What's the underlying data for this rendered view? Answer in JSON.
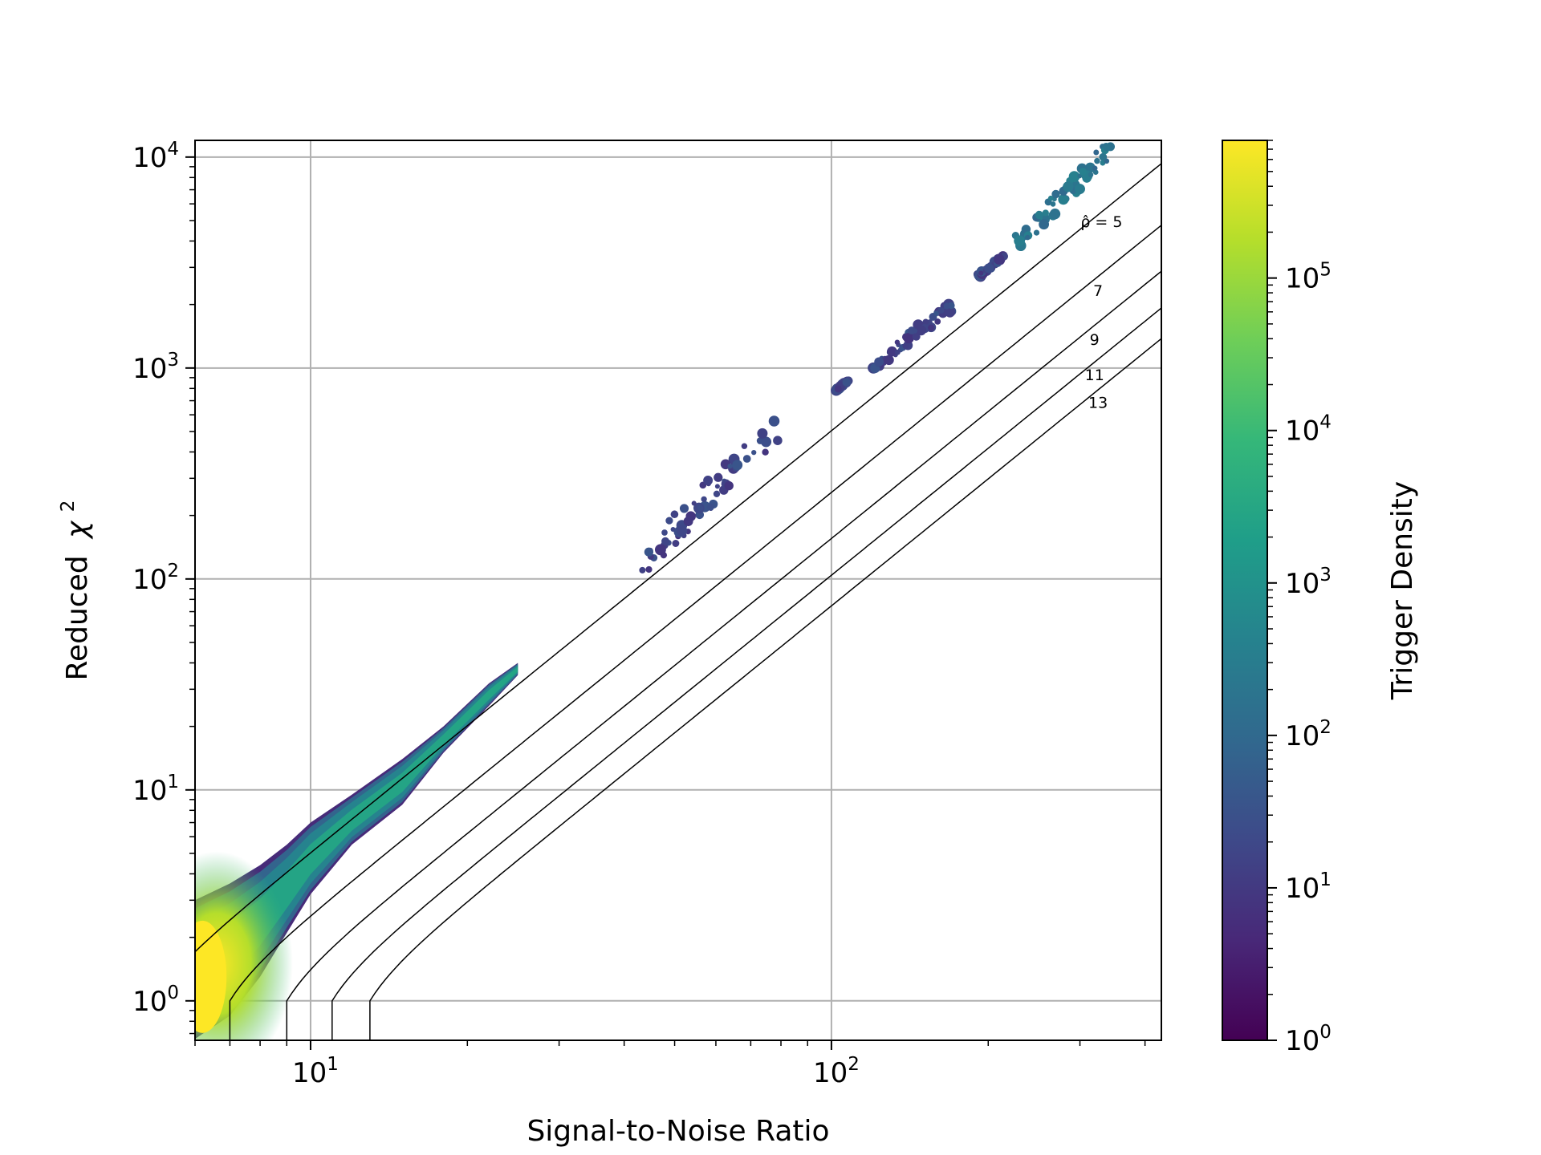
{
  "chart_data": {
    "type": "heatmap",
    "title": "",
    "xlabel": "Signal-to-Noise Ratio",
    "ylabel_text": "Reduced",
    "ylabel_symbol": "χ",
    "ylabel_power": "2",
    "x_scale": "log",
    "y_scale": "log",
    "xlim": [
      6,
      430
    ],
    "ylim": [
      0.65,
      12000
    ],
    "grid": true,
    "x_ticks": [
      {
        "value": 10,
        "base": "10",
        "exp": "1"
      },
      {
        "value": 100,
        "base": "10",
        "exp": "2"
      }
    ],
    "y_ticks": [
      {
        "value": 1,
        "base": "10",
        "exp": "0"
      },
      {
        "value": 10,
        "base": "10",
        "exp": "1"
      },
      {
        "value": 100,
        "base": "10",
        "exp": "2"
      },
      {
        "value": 1000,
        "base": "10",
        "exp": "3"
      },
      {
        "value": 10000,
        "base": "10",
        "exp": "4"
      }
    ],
    "contours": [
      {
        "rho": 5,
        "label": "ρ̂ = 5",
        "label_at": [
          330,
          4900
        ]
      },
      {
        "rho": 7,
        "label": "7",
        "label_at": [
          325,
          2300
        ]
      },
      {
        "rho": 9,
        "label": "9",
        "label_at": [
          320,
          1350
        ]
      },
      {
        "rho": 11,
        "label": "11",
        "label_at": [
          320,
          920
        ]
      },
      {
        "rho": 13,
        "label": "13",
        "label_at": [
          325,
          680
        ]
      }
    ],
    "density_regions": [
      {
        "name": "main-band",
        "level": "high",
        "upper": [
          [
            6,
            3.0
          ],
          [
            7,
            3.6
          ],
          [
            8,
            4.4
          ],
          [
            9,
            5.5
          ],
          [
            10,
            7.0
          ],
          [
            12,
            9.5
          ],
          [
            15,
            14
          ],
          [
            18,
            20
          ],
          [
            22,
            32
          ],
          [
            25,
            40
          ]
        ],
        "lower": [
          [
            25,
            35
          ],
          [
            22,
            25
          ],
          [
            18,
            15
          ],
          [
            15,
            8.5
          ],
          [
            12,
            5.5
          ],
          [
            10,
            3.2
          ],
          [
            9,
            2.1
          ],
          [
            8,
            1.3
          ],
          [
            7,
            0.85
          ],
          [
            6,
            0.66
          ]
        ]
      },
      {
        "name": "cluster-1",
        "level": "low",
        "x_range": [
          42,
          80
        ],
        "y_range": [
          110,
          560
        ]
      },
      {
        "name": "cluster-2",
        "level": "low",
        "x_range": [
          102,
          108
        ],
        "y_range": [
          780,
          880
        ]
      },
      {
        "name": "cluster-3",
        "level": "low",
        "x_range": [
          120,
          170
        ],
        "y_range": [
          1000,
          2000
        ]
      },
      {
        "name": "cluster-4",
        "level": "low",
        "x_range": [
          190,
          215
        ],
        "y_range": [
          2700,
          3400
        ]
      },
      {
        "name": "cluster-5",
        "level": "mid",
        "x_range": [
          225,
          345
        ],
        "y_range": [
          3800,
          11200
        ]
      }
    ],
    "colorbar": {
      "label": "Trigger Density",
      "scale": "log",
      "range": [
        1,
        800000
      ],
      "colormap": "viridis",
      "colors": [
        "#440154",
        "#482878",
        "#3e4989",
        "#31688e",
        "#26828e",
        "#1f9e89",
        "#35b779",
        "#6ece58",
        "#b5de2b",
        "#fde725"
      ],
      "ticks": [
        {
          "value": 1,
          "base": "10",
          "exp": "0"
        },
        {
          "value": 10,
          "base": "10",
          "exp": "1"
        },
        {
          "value": 100,
          "base": "10",
          "exp": "2"
        },
        {
          "value": 1000,
          "base": "10",
          "exp": "3"
        },
        {
          "value": 10000,
          "base": "10",
          "exp": "4"
        },
        {
          "value": 100000,
          "base": "10",
          "exp": "5"
        }
      ]
    },
    "legend": "none"
  }
}
